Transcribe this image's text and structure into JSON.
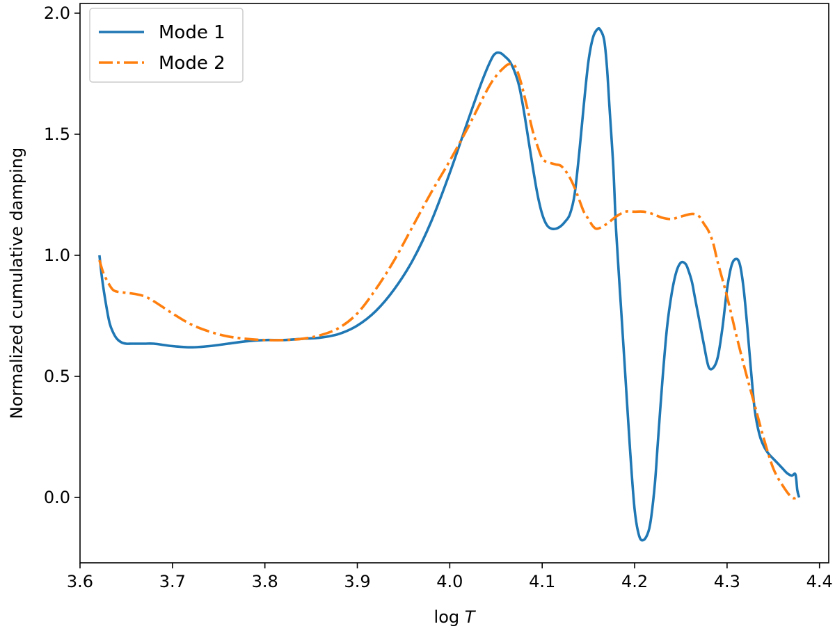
{
  "chart_data": {
    "type": "line",
    "xlabel_prefix": "log ",
    "xlabel_var": "T",
    "ylabel": "Normalized cumulative damping",
    "xlim": [
      3.6,
      4.41
    ],
    "ylim": [
      -0.27,
      2.04
    ],
    "xticks": [
      3.6,
      3.7,
      3.8,
      3.9,
      4.0,
      4.1,
      4.2,
      4.3,
      4.4
    ],
    "xtick_labels": [
      "3.6",
      "3.7",
      "3.8",
      "3.9",
      "4.0",
      "4.1",
      "4.2",
      "4.3",
      "4.4"
    ],
    "yticks": [
      0.0,
      0.5,
      1.0,
      1.5,
      2.0
    ],
    "ytick_labels": [
      "0.0",
      "0.5",
      "1.0",
      "1.5",
      "2.0"
    ],
    "grid": false,
    "legend_position": "top-left",
    "series": [
      {
        "name": "Mode 1",
        "color": "#1f77b4",
        "style": "solid",
        "x": [
          3.621,
          3.624,
          3.628,
          3.632,
          3.636,
          3.64,
          3.645,
          3.65,
          3.655,
          3.66,
          3.67,
          3.68,
          3.7,
          3.72,
          3.74,
          3.76,
          3.78,
          3.8,
          3.82,
          3.84,
          3.86,
          3.88,
          3.9,
          3.92,
          3.94,
          3.96,
          3.98,
          4.0,
          4.02,
          4.035,
          4.045,
          4.05,
          4.055,
          4.06,
          4.065,
          4.07,
          4.075,
          4.08,
          4.085,
          4.09,
          4.095,
          4.1,
          4.105,
          4.11,
          4.115,
          4.12,
          4.125,
          4.13,
          4.135,
          4.14,
          4.145,
          4.15,
          4.155,
          4.16,
          4.163,
          4.167,
          4.17,
          4.173,
          4.177,
          4.18,
          4.185,
          4.19,
          4.195,
          4.2,
          4.205,
          4.21,
          4.215,
          4.218,
          4.222,
          4.225,
          4.23,
          4.235,
          4.24,
          4.245,
          4.25,
          4.255,
          4.258,
          4.262,
          4.265,
          4.27,
          4.275,
          4.28,
          4.285,
          4.29,
          4.295,
          4.3,
          4.305,
          4.31,
          4.314,
          4.318,
          4.322,
          4.326,
          4.33,
          4.335,
          4.34,
          4.345,
          4.35,
          4.355,
          4.36,
          4.365,
          4.37,
          4.374,
          4.376,
          4.378
        ],
        "y": [
          1.0,
          0.9,
          0.8,
          0.72,
          0.68,
          0.655,
          0.64,
          0.635,
          0.635,
          0.635,
          0.635,
          0.635,
          0.625,
          0.62,
          0.625,
          0.635,
          0.645,
          0.65,
          0.65,
          0.655,
          0.66,
          0.675,
          0.71,
          0.77,
          0.86,
          0.98,
          1.14,
          1.34,
          1.56,
          1.72,
          1.81,
          1.835,
          1.835,
          1.82,
          1.8,
          1.76,
          1.7,
          1.6,
          1.48,
          1.36,
          1.25,
          1.17,
          1.125,
          1.11,
          1.11,
          1.12,
          1.14,
          1.17,
          1.25,
          1.42,
          1.62,
          1.8,
          1.9,
          1.935,
          1.93,
          1.89,
          1.78,
          1.6,
          1.36,
          1.1,
          0.8,
          0.5,
          0.2,
          -0.05,
          -0.16,
          -0.175,
          -0.14,
          -0.08,
          0.06,
          0.22,
          0.48,
          0.7,
          0.84,
          0.93,
          0.97,
          0.965,
          0.94,
          0.89,
          0.83,
          0.73,
          0.63,
          0.54,
          0.535,
          0.58,
          0.7,
          0.86,
          0.96,
          0.985,
          0.96,
          0.86,
          0.7,
          0.52,
          0.36,
          0.26,
          0.21,
          0.18,
          0.16,
          0.14,
          0.12,
          0.1,
          0.09,
          0.095,
          0.03,
          0.0
        ]
      },
      {
        "name": "Mode 2",
        "color": "#ff7f0e",
        "style": "dashdot",
        "x": [
          3.621,
          3.625,
          3.63,
          3.635,
          3.64,
          3.65,
          3.66,
          3.67,
          3.68,
          3.7,
          3.72,
          3.74,
          3.76,
          3.78,
          3.8,
          3.82,
          3.84,
          3.86,
          3.88,
          3.9,
          3.92,
          3.94,
          3.96,
          3.98,
          4.0,
          4.02,
          4.04,
          4.05,
          4.06,
          4.065,
          4.07,
          4.075,
          4.08,
          4.085,
          4.09,
          4.095,
          4.1,
          4.105,
          4.11,
          4.115,
          4.12,
          4.125,
          4.13,
          4.135,
          4.14,
          4.145,
          4.15,
          4.155,
          4.16,
          4.17,
          4.18,
          4.19,
          4.2,
          4.21,
          4.22,
          4.23,
          4.24,
          4.25,
          4.26,
          4.265,
          4.27,
          4.275,
          4.28,
          4.285,
          4.29,
          4.3,
          4.31,
          4.32,
          4.33,
          4.34,
          4.35,
          4.36,
          4.37,
          4.376,
          4.378
        ],
        "y": [
          0.98,
          0.93,
          0.89,
          0.86,
          0.85,
          0.845,
          0.84,
          0.83,
          0.81,
          0.76,
          0.715,
          0.685,
          0.665,
          0.655,
          0.65,
          0.65,
          0.655,
          0.67,
          0.7,
          0.76,
          0.86,
          0.98,
          1.12,
          1.26,
          1.39,
          1.53,
          1.68,
          1.74,
          1.78,
          1.79,
          1.785,
          1.74,
          1.67,
          1.59,
          1.51,
          1.45,
          1.4,
          1.385,
          1.38,
          1.375,
          1.37,
          1.35,
          1.32,
          1.28,
          1.23,
          1.18,
          1.15,
          1.12,
          1.11,
          1.13,
          1.16,
          1.18,
          1.18,
          1.18,
          1.17,
          1.155,
          1.15,
          1.16,
          1.17,
          1.17,
          1.16,
          1.13,
          1.1,
          1.05,
          0.97,
          0.83,
          0.67,
          0.52,
          0.38,
          0.24,
          0.12,
          0.05,
          0.0,
          0.0,
          0.0
        ]
      }
    ]
  }
}
